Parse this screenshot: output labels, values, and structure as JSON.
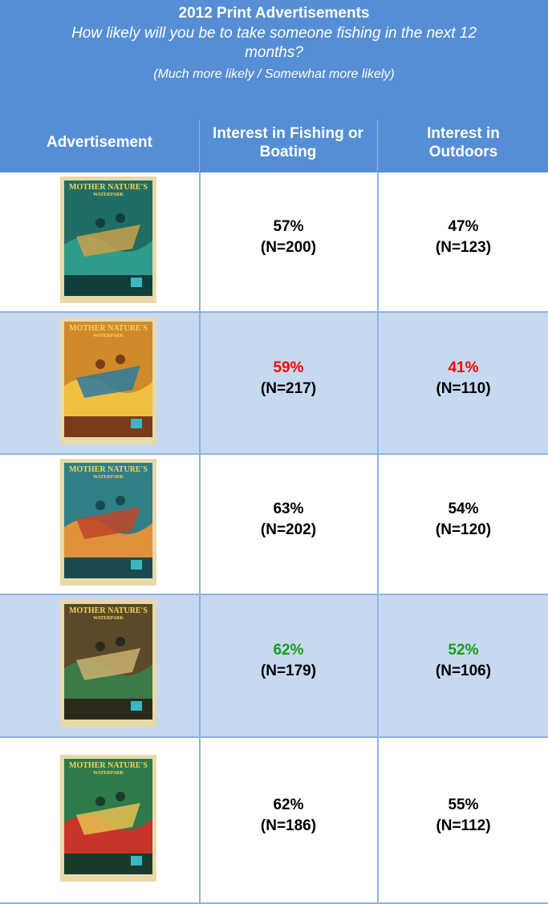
{
  "header": {
    "title": "2012 Print Advertisements",
    "question": "How likely will you be to take someone fishing in the next 12 months?",
    "subtitle": "(Much more likely / Somewhat more likely)"
  },
  "table": {
    "columns": [
      "Advertisement",
      "Interest in Fishing or Boating",
      "Interest in Outdoors"
    ],
    "rows": [
      {
        "poster": [
          "MOTHER NATURE'S",
          "WATERPARK"
        ],
        "fishing": {
          "pct": "57%",
          "n": "(N=200)"
        },
        "outdoors": {
          "pct": "47%",
          "n": "(N=123)"
        }
      },
      {
        "poster": [
          "MOTHER NATURE'S",
          "WATERPARK"
        ],
        "fishing": {
          "pct": "59%",
          "n": "(N=217)",
          "color": "#ff0000"
        },
        "outdoors": {
          "pct": "41%",
          "n": "(N=110)",
          "color": "#ff0000"
        }
      },
      {
        "poster": [
          "MOTHER NATURE'S",
          "WATERPARK"
        ],
        "fishing": {
          "pct": "63%",
          "n": "(N=202)"
        },
        "outdoors": {
          "pct": "54%",
          "n": "(N=120)"
        }
      },
      {
        "poster": [
          "MOTHER NATURE'S",
          "WATERPARK"
        ],
        "fishing": {
          "pct": "62%",
          "n": "(N=179)",
          "color": "#1a9a1a"
        },
        "outdoors": {
          "pct": "52%",
          "n": "(N=106)",
          "color": "#1a9a1a"
        }
      },
      {
        "poster": [
          "MOTHER NATURE'S",
          "WATERPARK"
        ],
        "fishing": {
          "pct": "62%",
          "n": "(N=186)"
        },
        "outdoors": {
          "pct": "55%",
          "n": "(N=112)"
        }
      }
    ]
  }
}
